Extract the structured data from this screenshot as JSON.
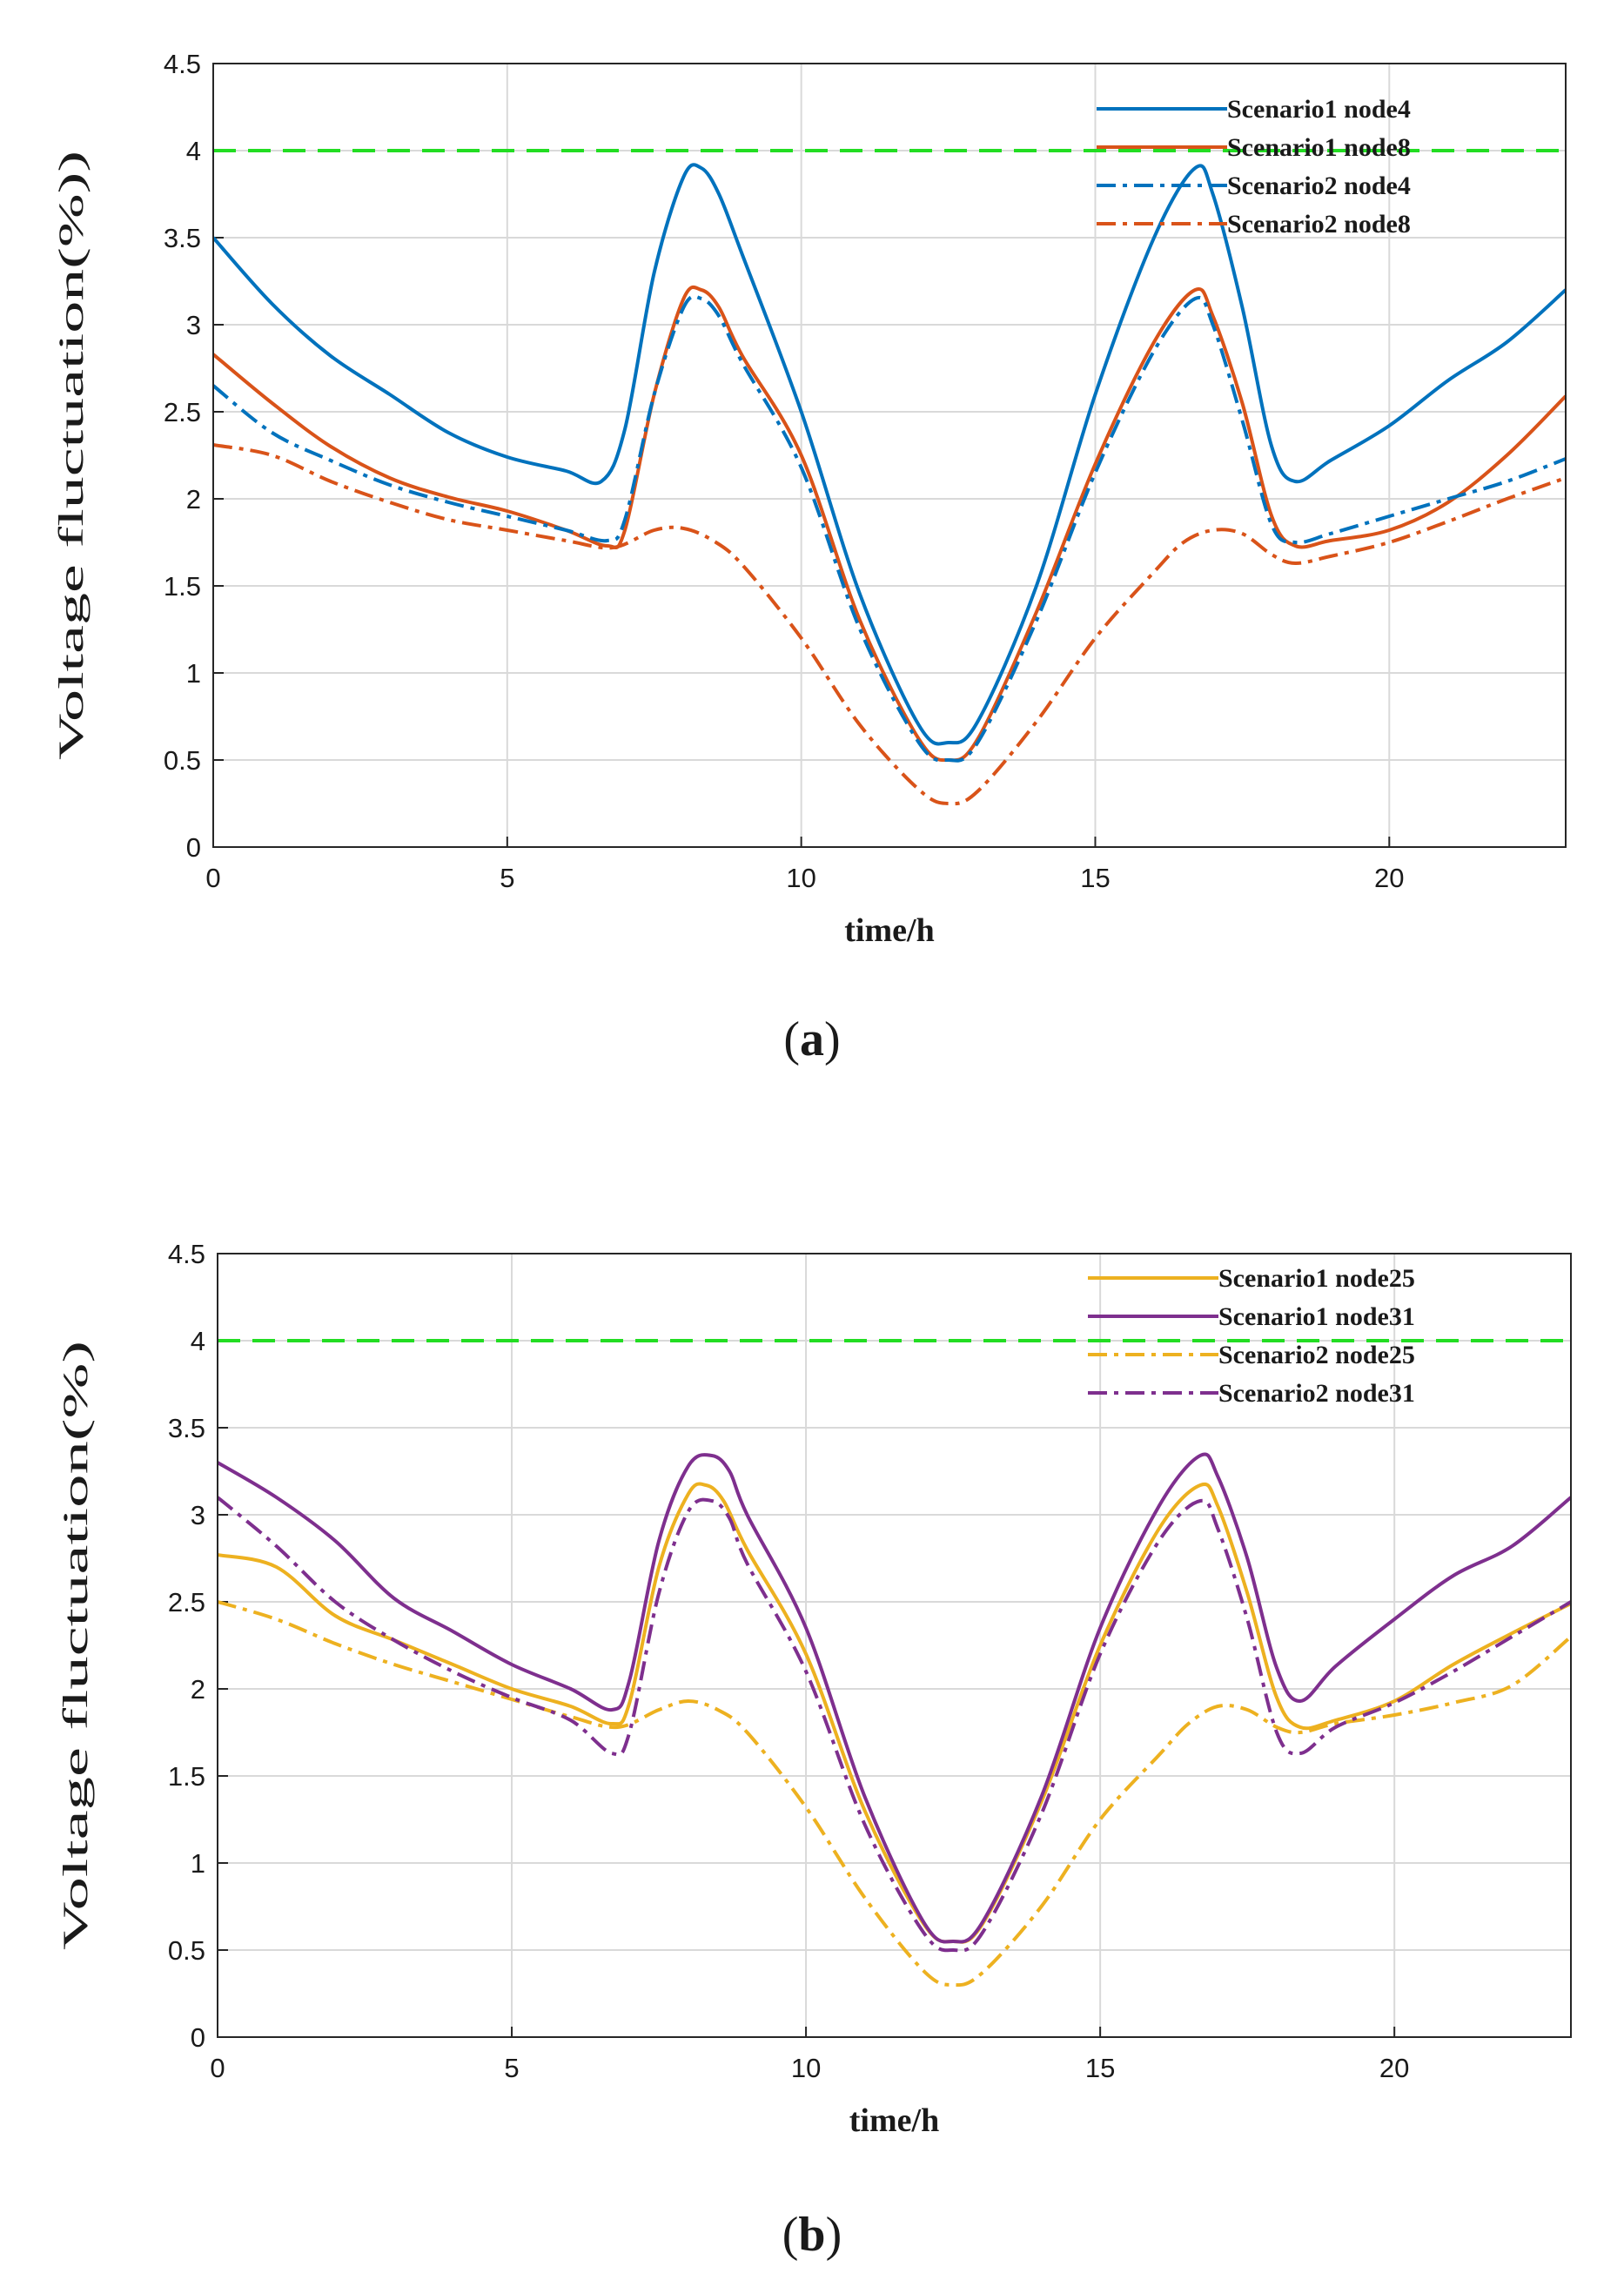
{
  "chart_data": [
    {
      "type": "line",
      "panel_label": "a",
      "xlabel": "time/h",
      "ylabel": "Voltage fluctuation(%))",
      "xlim": [
        0,
        23
      ],
      "ylim": [
        0,
        4.5
      ],
      "xticks": [
        "0",
        "5",
        "10",
        "15",
        "20"
      ],
      "yticks": [
        "0",
        "0.5",
        "1",
        "1.5",
        "2",
        "2.5",
        "3",
        "3.5",
        "4",
        "4.5"
      ],
      "grid": true,
      "legend_location": "top-right",
      "reference_line": {
        "y": 4,
        "color": "#22dd22",
        "style": "dashed"
      },
      "series": [
        {
          "name": "Scenario1 node4",
          "color": "#0072bd",
          "style": "solid",
          "x": [
            0,
            1,
            2,
            3,
            4,
            5,
            6,
            6.6,
            7,
            7.5,
            8,
            8.3,
            8.6,
            9,
            10,
            11,
            12,
            12.5,
            13,
            14,
            15,
            16,
            16.7,
            17,
            17.5,
            18,
            18.4,
            19,
            20,
            21,
            22,
            23
          ],
          "y": [
            3.5,
            3.12,
            2.82,
            2.6,
            2.38,
            2.24,
            2.16,
            2.1,
            2.4,
            3.3,
            3.85,
            3.9,
            3.75,
            3.4,
            2.5,
            1.45,
            0.7,
            0.6,
            0.72,
            1.5,
            2.6,
            3.5,
            3.9,
            3.75,
            3.1,
            2.3,
            2.1,
            2.22,
            2.42,
            2.68,
            2.9,
            3.2
          ]
        },
        {
          "name": "Scenario1 node8",
          "color": "#d95319",
          "style": "solid",
          "x": [
            0,
            1,
            2,
            3,
            4,
            5,
            6,
            6.7,
            7,
            7.5,
            8,
            8.3,
            8.6,
            9,
            10,
            11,
            12,
            12.5,
            13,
            14,
            15,
            16,
            16.7,
            17,
            17.5,
            18,
            18.4,
            19,
            20,
            21,
            22,
            23
          ],
          "y": [
            2.83,
            2.55,
            2.3,
            2.12,
            2.01,
            1.93,
            1.82,
            1.73,
            1.82,
            2.6,
            3.15,
            3.2,
            3.1,
            2.82,
            2.25,
            1.3,
            0.62,
            0.5,
            0.62,
            1.35,
            2.2,
            2.9,
            3.2,
            3.05,
            2.55,
            1.9,
            1.73,
            1.76,
            1.82,
            1.98,
            2.25,
            2.59
          ]
        },
        {
          "name": "Scenario2 node4",
          "color": "#0072bd",
          "style": "dashdot",
          "x": [
            0,
            1,
            2,
            3,
            4,
            5,
            6,
            6.7,
            7,
            7.5,
            8,
            8.3,
            8.6,
            9,
            10,
            11,
            12,
            12.5,
            13,
            14,
            15,
            16,
            16.7,
            17,
            17.5,
            18,
            18.4,
            19,
            20,
            21,
            22,
            23
          ],
          "y": [
            2.65,
            2.38,
            2.22,
            2.08,
            1.98,
            1.9,
            1.82,
            1.76,
            1.88,
            2.6,
            3.1,
            3.15,
            3.05,
            2.78,
            2.18,
            1.25,
            0.6,
            0.5,
            0.6,
            1.3,
            2.15,
            2.85,
            3.15,
            3.0,
            2.45,
            1.85,
            1.75,
            1.8,
            1.9,
            2.0,
            2.1,
            2.23
          ]
        },
        {
          "name": "Scenario2 node8",
          "color": "#d95319",
          "style": "dashdot",
          "x": [
            0,
            1,
            2,
            3,
            4,
            5,
            6,
            6.8,
            7.5,
            8,
            8.5,
            9,
            10,
            11,
            12,
            12.5,
            13,
            14,
            15,
            16,
            16.5,
            17,
            17.5,
            18,
            18.4,
            19,
            20,
            21,
            22,
            23
          ],
          "y": [
            2.31,
            2.25,
            2.1,
            1.98,
            1.88,
            1.82,
            1.76,
            1.72,
            1.82,
            1.83,
            1.76,
            1.62,
            1.2,
            0.7,
            0.33,
            0.25,
            0.32,
            0.72,
            1.2,
            1.58,
            1.75,
            1.82,
            1.8,
            1.68,
            1.63,
            1.67,
            1.75,
            1.87,
            2.0,
            2.12
          ]
        }
      ]
    },
    {
      "type": "line",
      "panel_label": "b",
      "xlabel": "time/h",
      "ylabel": "Voltage fluctuation(%)",
      "xlim": [
        0,
        23
      ],
      "ylim": [
        0,
        4.5
      ],
      "xticks": [
        "0",
        "5",
        "10",
        "15",
        "20"
      ],
      "yticks": [
        "0",
        "0.5",
        "1",
        "1.5",
        "2",
        "2.5",
        "3",
        "3.5",
        "4",
        "4.5"
      ],
      "grid": true,
      "legend_location": "top-right",
      "reference_line": {
        "y": 4,
        "color": "#22dd22",
        "style": "dashed"
      },
      "series": [
        {
          "name": "Scenario1 node25",
          "color": "#edb120",
          "style": "solid",
          "x": [
            0,
            1,
            2,
            3,
            4,
            5,
            6,
            6.7,
            7,
            7.5,
            8,
            8.3,
            8.6,
            9,
            10,
            11,
            12,
            12.5,
            13,
            14,
            15,
            16,
            16.7,
            17,
            17.5,
            18,
            18.4,
            19,
            20,
            21,
            22,
            23
          ],
          "y": [
            2.77,
            2.7,
            2.42,
            2.28,
            2.14,
            2.0,
            1.9,
            1.8,
            1.92,
            2.7,
            3.12,
            3.17,
            3.08,
            2.8,
            2.2,
            1.3,
            0.65,
            0.55,
            0.65,
            1.35,
            2.25,
            2.92,
            3.17,
            3.05,
            2.55,
            1.95,
            1.78,
            1.82,
            1.93,
            2.14,
            2.32,
            2.49
          ]
        },
        {
          "name": "Scenario1 node31",
          "color": "#7e2f8e",
          "style": "solid",
          "x": [
            0,
            1,
            2,
            3,
            4,
            5,
            6,
            6.7,
            7,
            7.5,
            8,
            8.4,
            8.7,
            9,
            10,
            11,
            12,
            12.5,
            13,
            14,
            15,
            16,
            16.7,
            17,
            17.5,
            18,
            18.4,
            19,
            20,
            21,
            22,
            23
          ],
          "y": [
            3.3,
            3.1,
            2.85,
            2.52,
            2.33,
            2.14,
            2.0,
            1.88,
            2.05,
            2.85,
            3.28,
            3.34,
            3.25,
            3.0,
            2.35,
            1.38,
            0.66,
            0.55,
            0.66,
            1.38,
            2.35,
            3.05,
            3.34,
            3.22,
            2.75,
            2.12,
            1.93,
            2.13,
            2.4,
            2.65,
            2.82,
            3.1
          ]
        },
        {
          "name": "Scenario2 node25",
          "color": "#edb120",
          "style": "dashdot",
          "x": [
            0,
            1,
            2,
            3,
            4,
            5,
            6,
            6.8,
            7.5,
            8,
            8.5,
            9,
            10,
            11,
            12,
            12.5,
            13,
            14,
            15,
            16,
            16.5,
            17,
            17.5,
            18,
            18.4,
            19,
            20,
            21,
            22,
            23
          ],
          "y": [
            2.5,
            2.4,
            2.26,
            2.14,
            2.04,
            1.94,
            1.84,
            1.78,
            1.88,
            1.93,
            1.88,
            1.75,
            1.32,
            0.8,
            0.38,
            0.3,
            0.37,
            0.75,
            1.25,
            1.62,
            1.8,
            1.9,
            1.88,
            1.78,
            1.75,
            1.8,
            1.85,
            1.92,
            2.02,
            2.3
          ]
        },
        {
          "name": "Scenario2 node31",
          "color": "#7e2f8e",
          "style": "dashdot",
          "x": [
            0,
            1,
            2,
            3,
            4,
            5,
            6,
            6.7,
            7,
            7.5,
            8,
            8.4,
            8.7,
            9,
            10,
            11,
            12,
            12.5,
            13,
            14,
            15,
            16,
            16.7,
            17,
            17.5,
            18,
            18.4,
            19,
            20,
            21,
            22,
            23
          ],
          "y": [
            3.1,
            2.82,
            2.5,
            2.28,
            2.1,
            1.95,
            1.82,
            1.63,
            1.75,
            2.55,
            3.02,
            3.08,
            2.98,
            2.72,
            2.1,
            1.22,
            0.6,
            0.5,
            0.6,
            1.28,
            2.2,
            2.85,
            3.08,
            2.92,
            2.4,
            1.75,
            1.63,
            1.78,
            1.92,
            2.1,
            2.3,
            2.5
          ]
        }
      ]
    }
  ]
}
